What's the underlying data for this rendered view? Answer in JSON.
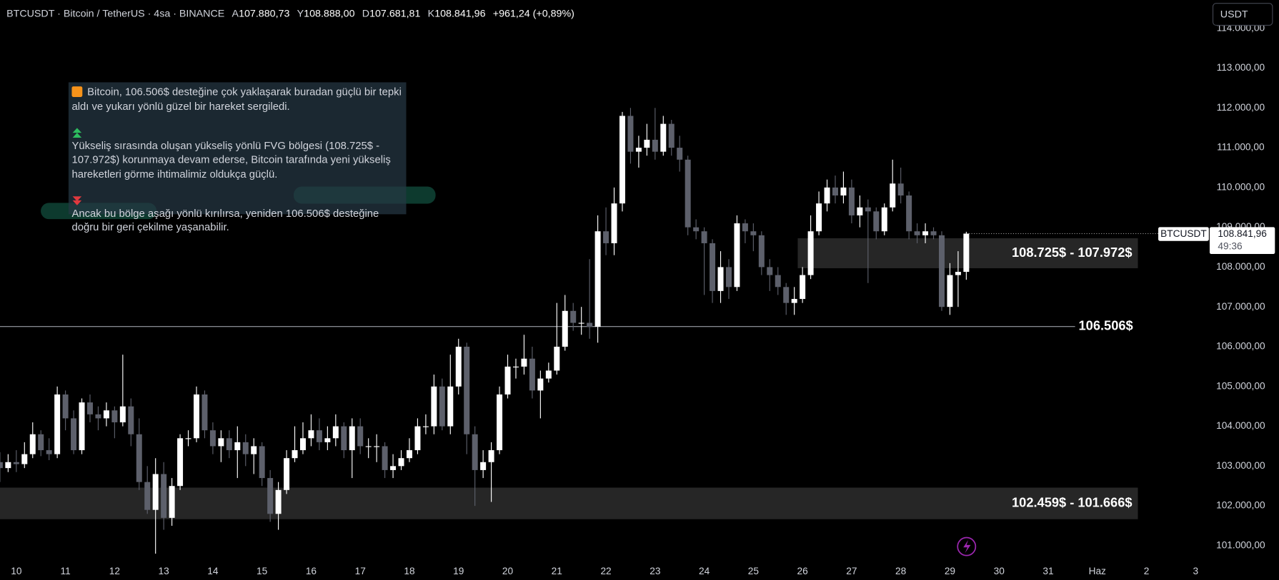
{
  "header": {
    "symbol": "BTCUSDT · Bitcoin / TetherUS · 4sa · BINANCE",
    "ohlc": [
      {
        "label": "A",
        "value": "107.880,73"
      },
      {
        "label": "Y",
        "value": "108.888,00"
      },
      {
        "label": "D",
        "value": "107.681,81"
      },
      {
        "label": "K",
        "value": "108.841,96"
      }
    ],
    "change": "+961,24 (+0,89%)",
    "currency": "USDT"
  },
  "annotation": {
    "paragraphs": [
      "Bitcoin, 106.506$ desteğine çok yaklaşarak buradan güçlü bir tepki aldı ve yukarı yönlü güzel bir hareket sergiledi.",
      "Yükseliş sırasında oluşan yükseliş yönlü FVG bölgesi (108.725$ - 107.972$) korunmaya devam ederse, Bitcoin tarafında yeni yükseliş hareketleri görme ihtimalimiz oldukça güçlü.",
      "Ancak bu bölge aşağı yönlü kırılırsa, yeniden 106.506$ desteğine doğru bir geri çekilme yaşanabilir."
    ]
  },
  "chart_data": {
    "type": "candlestick",
    "grid": false,
    "categories": [
      null,
      null,
      "10",
      null,
      null,
      null,
      null,
      null,
      "11",
      null,
      null,
      null,
      null,
      null,
      "12",
      null,
      null,
      null,
      null,
      null,
      "13",
      null,
      null,
      null,
      null,
      null,
      "14",
      null,
      null,
      null,
      null,
      null,
      "15",
      null,
      null,
      null,
      null,
      null,
      "16",
      null,
      null,
      null,
      null,
      null,
      "17",
      null,
      null,
      null,
      null,
      null,
      "18",
      null,
      null,
      null,
      null,
      null,
      "19",
      null,
      null,
      null,
      null,
      null,
      "20",
      null,
      null,
      null,
      null,
      null,
      "21",
      null,
      null,
      null,
      null,
      null,
      "22",
      null,
      null,
      null,
      null,
      null,
      "23",
      null,
      null,
      null,
      null,
      null,
      "24",
      null,
      null,
      null,
      null,
      null,
      "25",
      null,
      null,
      null,
      null,
      null,
      "26",
      null,
      null,
      null,
      null,
      null,
      "27",
      null,
      null,
      null,
      null,
      null,
      "28",
      null,
      null,
      null,
      null,
      null,
      "29",
      null,
      null,
      null,
      null,
      null,
      "30",
      null,
      null,
      null,
      null,
      null,
      "31",
      null,
      null,
      null,
      null,
      null,
      "Haz",
      null,
      null,
      null,
      null,
      null,
      "2",
      null,
      null,
      null,
      null,
      null,
      "3",
      null
    ],
    "series": [
      {
        "name": "BTCUSDT",
        "up_color": "#ffffff",
        "down_color": "#5d606b",
        "open": [
          103100,
          102950,
          103100,
          103050,
          103300,
          103800,
          103400,
          103300,
          104800,
          104200,
          103400,
          104600,
          104300,
          104200,
          104400,
          104100,
          104500,
          103800,
          102600,
          101900,
          102800,
          101700,
          102500,
          103700,
          103700,
          104800,
          103900,
          103500,
          103700,
          103400,
          103600,
          103300,
          103500,
          102700,
          101800,
          102400,
          103200,
          103400,
          103700,
          103900,
          103600,
          103700,
          104000,
          103400,
          104000,
          103500,
          103500,
          103500,
          102900,
          103000,
          103200,
          103400,
          104000,
          104000,
          105000,
          104000,
          105000,
          106000,
          103800,
          102900,
          103100,
          103400,
          104800,
          105500,
          105500,
          105700,
          104900,
          105200,
          105400,
          106000,
          106900,
          106600,
          106600,
          106500,
          108900,
          108600,
          109600,
          111800,
          110900,
          111000,
          111200,
          110900,
          111600,
          111000,
          110700,
          109000,
          108900,
          108600,
          107400,
          108000,
          107500,
          109100,
          108900,
          108800,
          108000,
          107800,
          107500,
          107100,
          107200,
          107800,
          108900,
          109600,
          110000,
          109800,
          110000,
          109300,
          109500,
          109400,
          108900,
          109500,
          110100,
          109800,
          108900,
          108800,
          108900,
          108800,
          107000,
          107800,
          107880.73,
          null,
          null,
          null,
          null,
          null,
          null,
          null,
          null,
          null,
          null,
          null,
          null,
          null,
          null,
          null,
          null,
          null,
          null,
          null,
          null,
          null,
          null,
          null,
          null,
          null,
          null,
          null,
          null,
          null
        ],
        "high": [
          103350,
          103300,
          103400,
          103600,
          104100,
          103900,
          103700,
          105000,
          104900,
          104400,
          104700,
          104800,
          104500,
          104600,
          104500,
          105800,
          104700,
          104200,
          103000,
          103200,
          103100,
          102700,
          103800,
          103900,
          105000,
          104900,
          104100,
          103900,
          103900,
          104000,
          103800,
          103700,
          103600,
          102900,
          102600,
          103400,
          104000,
          104100,
          104300,
          104200,
          104000,
          104300,
          104100,
          104200,
          104200,
          103700,
          103800,
          103600,
          103300,
          103400,
          103700,
          104200,
          104300,
          105300,
          105200,
          105800,
          106200,
          106100,
          104000,
          103400,
          103600,
          105000,
          105800,
          105700,
          106300,
          106000,
          105400,
          105600,
          107100,
          107300,
          107100,
          107000,
          108200,
          109300,
          109500,
          110000,
          111900,
          112000,
          111300,
          111600,
          112000,
          111800,
          111700,
          111300,
          110800,
          109200,
          109000,
          108700,
          108400,
          108200,
          109300,
          109200,
          109100,
          108900,
          108200,
          108000,
          107600,
          107500,
          108000,
          109300,
          109900,
          110200,
          110300,
          110400,
          110200,
          109800,
          109700,
          109500,
          109600,
          110700,
          110500,
          109900,
          109100,
          109100,
          109000,
          108900,
          108100,
          108400,
          108888,
          null,
          null,
          null,
          null,
          null,
          null,
          null,
          null,
          null,
          null,
          null,
          null,
          null,
          null,
          null,
          null,
          null,
          null,
          null,
          null,
          null,
          null,
          null,
          null,
          null,
          null,
          null,
          null,
          null
        ],
        "low": [
          102600,
          102850,
          102850,
          102950,
          103200,
          103250,
          103150,
          103200,
          103900,
          103300,
          103300,
          104100,
          103900,
          104000,
          103700,
          104000,
          103500,
          102400,
          101800,
          100800,
          101400,
          101500,
          102400,
          103500,
          103600,
          103700,
          103300,
          103100,
          103200,
          102700,
          103000,
          102800,
          102500,
          101600,
          101400,
          102300,
          103100,
          103300,
          103500,
          103400,
          103400,
          103500,
          103200,
          102700,
          103300,
          103200,
          103100,
          102700,
          102700,
          102900,
          103100,
          103300,
          103800,
          103800,
          103900,
          103800,
          104800,
          103300,
          102000,
          102700,
          102100,
          103300,
          104700,
          105200,
          105300,
          104700,
          104200,
          105100,
          105300,
          105900,
          106400,
          106300,
          106200,
          106100,
          108300,
          108300,
          109400,
          110600,
          110500,
          110800,
          110700,
          110800,
          110800,
          110400,
          108800,
          108700,
          107300,
          107100,
          107100,
          107200,
          107400,
          108600,
          108400,
          107800,
          107400,
          107300,
          106800,
          106800,
          107100,
          107700,
          108800,
          109400,
          109600,
          109600,
          109100,
          109000,
          107600,
          108700,
          108800,
          109400,
          109600,
          108700,
          108600,
          108600,
          108700,
          106900,
          106800,
          107000,
          107681.81,
          null,
          null,
          null,
          null,
          null,
          null,
          null,
          null,
          null,
          null,
          null,
          null,
          null,
          null,
          null,
          null,
          null,
          null,
          null,
          null,
          null,
          null,
          null,
          null,
          null,
          null,
          null,
          null,
          null
        ],
        "close": [
          102950,
          103100,
          103050,
          103300,
          103800,
          103400,
          103300,
          104800,
          104200,
          103400,
          104600,
          104300,
          104200,
          104400,
          104100,
          104500,
          103800,
          102600,
          101900,
          102800,
          101700,
          102500,
          103700,
          103700,
          104800,
          103900,
          103500,
          103700,
          103400,
          103600,
          103300,
          103500,
          102700,
          101800,
          102400,
          103200,
          103400,
          103700,
          103900,
          103600,
          103700,
          104000,
          103400,
          104000,
          103500,
          103500,
          103500,
          102900,
          103000,
          103200,
          103400,
          104000,
          104000,
          105000,
          104000,
          105000,
          106000,
          103800,
          102900,
          103100,
          103400,
          104800,
          105500,
          105500,
          105700,
          104900,
          105200,
          105400,
          106000,
          106900,
          106600,
          106600,
          106500,
          108900,
          108600,
          109600,
          111800,
          110900,
          111000,
          111200,
          110900,
          111600,
          111000,
          110700,
          109000,
          108900,
          108600,
          107400,
          108000,
          107500,
          109100,
          108900,
          108800,
          108000,
          107800,
          107500,
          107100,
          107200,
          107800,
          108900,
          109600,
          110000,
          109800,
          110000,
          109300,
          109500,
          109400,
          108900,
          109500,
          110100,
          109800,
          108900,
          108800,
          108900,
          108800,
          107000,
          107800,
          107880.73,
          108841.96,
          null,
          null,
          null,
          null,
          null,
          null,
          null,
          null,
          null,
          null,
          null,
          null,
          null,
          null,
          null,
          null,
          null,
          null,
          null,
          null,
          null,
          null,
          null,
          null,
          null,
          null,
          null,
          null,
          null
        ]
      }
    ],
    "ylim": [
      100590,
      114710
    ],
    "yticks": [
      {
        "value": 101000,
        "label": "101.000,00"
      },
      {
        "value": 102000,
        "label": "102.000,00"
      },
      {
        "value": 103000,
        "label": "103.000,00"
      },
      {
        "value": 104000,
        "label": "104.000,00"
      },
      {
        "value": 105000,
        "label": "105.000,00"
      },
      {
        "value": 106000,
        "label": "106.000,00"
      },
      {
        "value": 107000,
        "label": "107.000,00"
      },
      {
        "value": 108000,
        "label": "108.000,00"
      },
      {
        "value": 109000,
        "label": "109.000,00"
      },
      {
        "value": 110000,
        "label": "110.000,00"
      },
      {
        "value": 111000,
        "label": "111.000,00"
      },
      {
        "value": 112000,
        "label": "112.000,00"
      },
      {
        "value": 113000,
        "label": "113.000,00"
      },
      {
        "value": 114000,
        "label": "114.000,00"
      }
    ],
    "zones": [
      {
        "high": 108725,
        "low": 107972,
        "label": "108.725$ - 107.972$"
      },
      {
        "high": 102459,
        "low": 101666,
        "label": "102.459$ - 101.666$"
      }
    ],
    "levels": [
      {
        "value": 106506,
        "label": "106.506$"
      }
    ],
    "last_price": {
      "symbol": "BTCUSDT",
      "value": 108841.96,
      "label": "108.841,96",
      "countdown": "49:36"
    }
  }
}
